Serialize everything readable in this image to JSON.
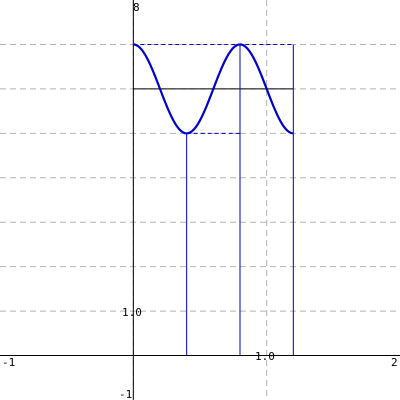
{
  "chart_data": {
    "type": "line",
    "title": "",
    "xlabel": "",
    "ylabel": "",
    "xlim": [
      -1,
      2
    ],
    "ylim": [
      -1,
      8
    ],
    "grid": true,
    "gridlines_x": [
      0,
      1
    ],
    "gridlines_y": [
      1,
      2,
      3,
      4,
      5,
      6,
      7
    ],
    "tick_labels": {
      "x_min": "-1",
      "x_max": "2",
      "x_mid": "1.0",
      "y_max": "8",
      "y_min": "-1",
      "y_mid": "1.0"
    },
    "series": [
      {
        "function": "6 + cos(pi*x/0.4)",
        "x_range": [
          0,
          1.2
        ],
        "color": "#0000cc",
        "style": "thick-solid"
      }
    ],
    "reference_lines": [
      {
        "kind": "horizontal",
        "y": 6,
        "x_range": [
          0,
          1.2
        ],
        "color": "#000000",
        "style": "solid"
      },
      {
        "kind": "horizontal",
        "y": 7,
        "x_range": [
          0,
          1.2
        ],
        "color": "#0000cc",
        "style": "dashed"
      },
      {
        "kind": "horizontal",
        "y": 5,
        "x_range": [
          0.4,
          0.8
        ],
        "color": "#0000cc",
        "style": "dashed"
      },
      {
        "kind": "vertical",
        "x": 0.4,
        "y_range": [
          0,
          5
        ],
        "color": "#0000cc",
        "style": "solid"
      },
      {
        "kind": "vertical",
        "x": 0.8,
        "y_range": [
          0,
          7
        ],
        "color": "#0000cc",
        "style": "solid"
      },
      {
        "kind": "vertical",
        "x": 1.2,
        "y_range": [
          0,
          7
        ],
        "color": "#0000cc",
        "style": "solid"
      }
    ],
    "colors": {
      "axes": "#000000",
      "grid": "#b4b4b4",
      "curve": "#0000cc",
      "background": "#ffffff"
    }
  }
}
